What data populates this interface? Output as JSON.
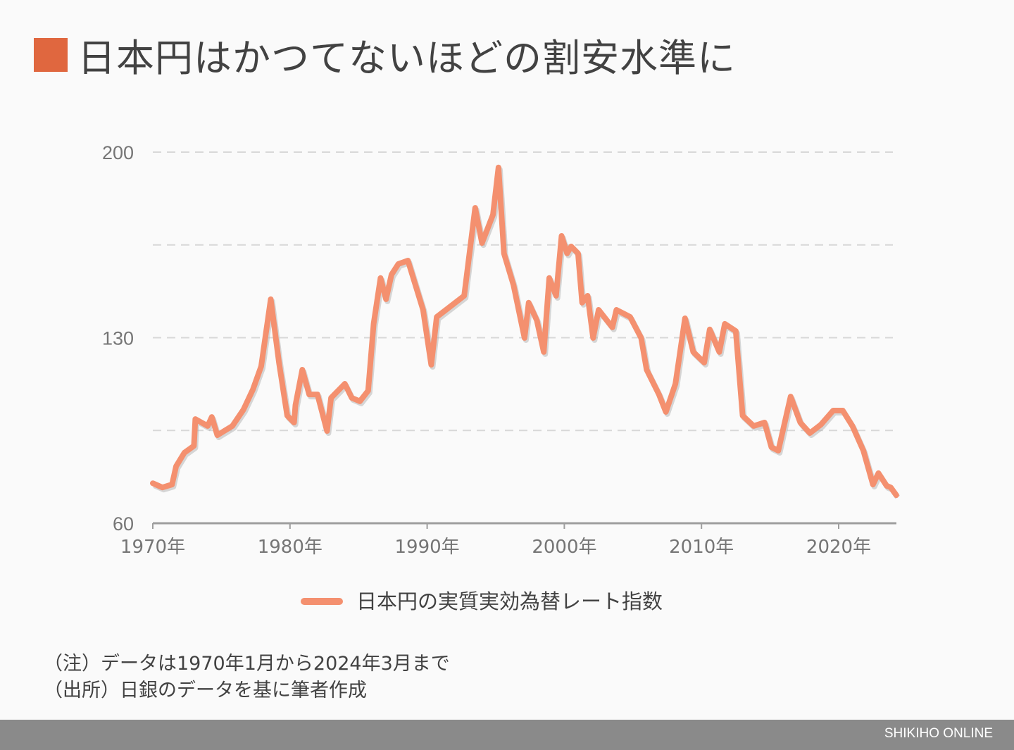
{
  "title": "日本円はかつてないほどの割安水準に",
  "colors": {
    "title_square": "#e0673f",
    "series": "#f4906f",
    "axis": "#9e9e9e",
    "grid": "#d8d8d8"
  },
  "chart_data": {
    "type": "line",
    "title": "日本円はかつてないほどの割安水準に",
    "xlabel": "",
    "ylabel": "",
    "xlim": [
      1970,
      2024.2
    ],
    "ylim": [
      60,
      200
    ],
    "yticks": [
      60,
      130,
      200
    ],
    "ytick_labels": [
      "60",
      "130",
      "200"
    ],
    "ygrid": [
      95,
      130,
      165,
      200
    ],
    "xticks": [
      1970,
      1980,
      1990,
      2000,
      2010,
      2020
    ],
    "xtick_labels": [
      "1970年",
      "1980年",
      "1990年",
      "2000年",
      "2010年",
      "2020年"
    ],
    "grid": "horizontal dashed",
    "legend_position": "bottom-center",
    "series": [
      {
        "name": "日本円の実質実効為替レート指数",
        "x": [
          1970.0,
          1970.7,
          1971.4,
          1971.7,
          1972.3,
          1973.0,
          1973.1,
          1974.0,
          1974.3,
          1974.7,
          1975.8,
          1976.6,
          1977.3,
          1977.9,
          1978.6,
          1979.2,
          1979.8,
          1980.3,
          1980.4,
          1980.9,
          1981.4,
          1982.0,
          1982.7,
          1983.0,
          1984.0,
          1984.5,
          1985.1,
          1985.7,
          1986.1,
          1986.6,
          1987.0,
          1987.4,
          1987.9,
          1988.6,
          1989.7,
          1990.3,
          1990.7,
          1991.7,
          1992.7,
          1993.5,
          1994.0,
          1994.8,
          1995.2,
          1995.6,
          1996.3,
          1997.1,
          1997.4,
          1998.0,
          1998.5,
          1998.9,
          1999.4,
          1999.8,
          2000.2,
          2000.5,
          2001.0,
          2001.3,
          2001.7,
          2002.1,
          2002.5,
          2003.5,
          2003.8,
          2004.8,
          2005.6,
          2006.0,
          2006.9,
          2007.4,
          2008.1,
          2008.8,
          2009.4,
          2010.2,
          2010.6,
          2011.3,
          2011.7,
          2012.5,
          2013.0,
          2013.8,
          2014.6,
          2015.1,
          2015.6,
          2016.5,
          2017.2,
          2017.9,
          2018.7,
          2019.6,
          2020.3,
          2021.0,
          2021.8,
          2022.5,
          2022.9,
          2023.5,
          2023.8,
          2024.2
        ],
        "values": [
          75.1,
          73.5,
          74.6,
          81.5,
          86.6,
          89.2,
          99.3,
          96.7,
          100.1,
          93.2,
          96.7,
          102.8,
          110.5,
          119.2,
          144.5,
          120.6,
          100.6,
          98.0,
          104.6,
          117.9,
          108.6,
          108.6,
          94.8,
          107.3,
          112.6,
          107.3,
          106.0,
          110.0,
          135.2,
          152.5,
          144.5,
          153.8,
          157.8,
          159.1,
          140.5,
          119.8,
          137.8,
          141.8,
          145.8,
          179.0,
          165.7,
          176.4,
          194.2,
          161.8,
          149.8,
          129.9,
          143.2,
          136.5,
          124.6,
          152.5,
          145.8,
          168.4,
          161.8,
          164.4,
          161.8,
          143.2,
          145.8,
          129.9,
          140.5,
          133.9,
          140.5,
          137.8,
          129.9,
          117.9,
          108.6,
          102.0,
          112.6,
          137.3,
          124.6,
          120.6,
          133.1,
          124.6,
          135.2,
          132.5,
          100.6,
          96.7,
          98.0,
          88.7,
          87.4,
          107.8,
          98.0,
          94.0,
          97.2,
          102.5,
          102.5,
          96.7,
          87.4,
          74.6,
          78.9,
          74.1,
          73.5,
          70.6
        ]
      }
    ]
  },
  "legend": {
    "label": "日本円の実質実効為替レート指数"
  },
  "notes": [
    "（注）データは1970年1月から2024年3月まで",
    "（出所）日銀のデータを基に筆者作成"
  ],
  "footer": {
    "brand": "SHIKIHO ONLINE"
  }
}
